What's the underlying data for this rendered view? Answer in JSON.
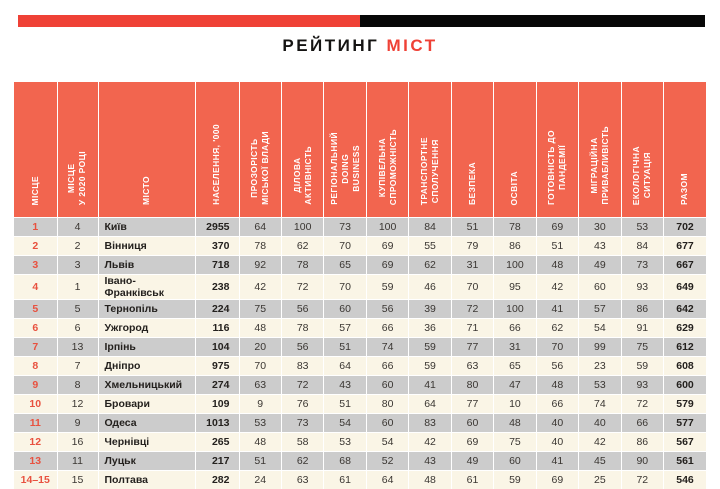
{
  "title": {
    "part1": "РЕЙТИНГ",
    "part2": "МІСТ"
  },
  "colors": {
    "accent_red": "#ef4136",
    "banner_black": "#070707",
    "header_bg": "#f2654f",
    "row_gray": "#cccccc",
    "row_cream": "#faf5e6",
    "place_red": "#e8513f"
  },
  "chart_data": {
    "type": "table",
    "title": "РЕЙТИНГ МІСТ",
    "columns": [
      {
        "key": "place",
        "label": "МІСЦЕ"
      },
      {
        "key": "place-2020",
        "label": "МІСЦЕ\nУ 2020 РОЦІ"
      },
      {
        "key": "city",
        "label": "МІСТО"
      },
      {
        "key": "population",
        "label": "НАСЕЛЕННЯ, '000"
      },
      {
        "key": "transparency",
        "label": "ПРОЗОРІСТЬ\nМІСЬКОЇ ВЛАДИ"
      },
      {
        "key": "business-activity",
        "label": "ДІЛОВА\nАКТИВНІСТЬ"
      },
      {
        "key": "doing-business",
        "label": "РЕГІОНАЛЬНИЙ\nDOING\nBUSINESS"
      },
      {
        "key": "purchasing-power",
        "label": "КУПІВЕЛЬНА\nСПРОМОЖНІСТЬ"
      },
      {
        "key": "transport",
        "label": "ТРАНСПОРТНЕ\nСПОЛУЧЕННЯ"
      },
      {
        "key": "safety",
        "label": "БЕЗПЕКА"
      },
      {
        "key": "education",
        "label": "ОСВІТА"
      },
      {
        "key": "pandemic-readiness",
        "label": "ГОТОВНІСТЬ ДО\nПАНДЕМІЇ"
      },
      {
        "key": "migration-attractiveness",
        "label": "МІГРАЦІЙНА\nПРИВАБЛИВІСТЬ"
      },
      {
        "key": "ecology",
        "label": "ЕКОЛОГІЧНА\nСИТУАЦІЯ"
      },
      {
        "key": "total",
        "label": "РАЗОМ"
      }
    ],
    "rows": [
      {
        "place": "1",
        "place_2020": "4",
        "city": "Київ",
        "population": "2955",
        "scores": [
          "64",
          "100",
          "73",
          "100",
          "84",
          "51",
          "78",
          "69",
          "30",
          "53"
        ],
        "total": "702"
      },
      {
        "place": "2",
        "place_2020": "2",
        "city": "Вінниця",
        "population": "370",
        "scores": [
          "78",
          "62",
          "70",
          "69",
          "55",
          "79",
          "86",
          "51",
          "43",
          "84"
        ],
        "total": "677"
      },
      {
        "place": "3",
        "place_2020": "3",
        "city": "Львів",
        "population": "718",
        "scores": [
          "92",
          "78",
          "65",
          "69",
          "62",
          "31",
          "100",
          "48",
          "49",
          "73"
        ],
        "total": "667"
      },
      {
        "place": "4",
        "place_2020": "1",
        "city": "Івано-Франківськ",
        "population": "238",
        "scores": [
          "42",
          "72",
          "70",
          "59",
          "46",
          "70",
          "95",
          "42",
          "60",
          "93"
        ],
        "total": "649"
      },
      {
        "place": "5",
        "place_2020": "5",
        "city": "Тернопіль",
        "population": "224",
        "scores": [
          "75",
          "56",
          "60",
          "56",
          "39",
          "72",
          "100",
          "41",
          "57",
          "86"
        ],
        "total": "642"
      },
      {
        "place": "6",
        "place_2020": "6",
        "city": "Ужгород",
        "population": "116",
        "scores": [
          "48",
          "78",
          "57",
          "66",
          "36",
          "71",
          "66",
          "62",
          "54",
          "91"
        ],
        "total": "629"
      },
      {
        "place": "7",
        "place_2020": "13",
        "city": "Ірпінь",
        "population": "104",
        "scores": [
          "20",
          "56",
          "51",
          "74",
          "59",
          "77",
          "31",
          "70",
          "99",
          "75"
        ],
        "total": "612"
      },
      {
        "place": "8",
        "place_2020": "7",
        "city": "Дніпро",
        "population": "975",
        "scores": [
          "70",
          "83",
          "64",
          "66",
          "59",
          "63",
          "65",
          "56",
          "23",
          "59"
        ],
        "total": "608"
      },
      {
        "place": "9",
        "place_2020": "8",
        "city": "Хмельницький",
        "population": "274",
        "scores": [
          "63",
          "72",
          "43",
          "60",
          "41",
          "80",
          "47",
          "48",
          "53",
          "93"
        ],
        "total": "600"
      },
      {
        "place": "10",
        "place_2020": "12",
        "city": "Бровари",
        "population": "109",
        "scores": [
          "9",
          "76",
          "51",
          "80",
          "64",
          "77",
          "10",
          "66",
          "74",
          "72"
        ],
        "total": "579"
      },
      {
        "place": "11",
        "place_2020": "9",
        "city": "Одеса",
        "population": "1013",
        "scores": [
          "53",
          "73",
          "54",
          "60",
          "83",
          "60",
          "48",
          "40",
          "40",
          "66"
        ],
        "total": "577"
      },
      {
        "place": "12",
        "place_2020": "16",
        "city": "Чернівці",
        "population": "265",
        "scores": [
          "48",
          "58",
          "53",
          "54",
          "42",
          "69",
          "75",
          "40",
          "42",
          "86"
        ],
        "total": "567"
      },
      {
        "place": "13",
        "place_2020": "11",
        "city": "Луцьк",
        "population": "217",
        "scores": [
          "51",
          "62",
          "68",
          "52",
          "43",
          "49",
          "60",
          "41",
          "45",
          "90"
        ],
        "total": "561"
      },
      {
        "place": "14–15",
        "place_2020": "15",
        "city": "Полтава",
        "population": "282",
        "scores": [
          "24",
          "63",
          "61",
          "64",
          "48",
          "61",
          "59",
          "69",
          "25",
          "72"
        ],
        "total": "546"
      }
    ]
  }
}
